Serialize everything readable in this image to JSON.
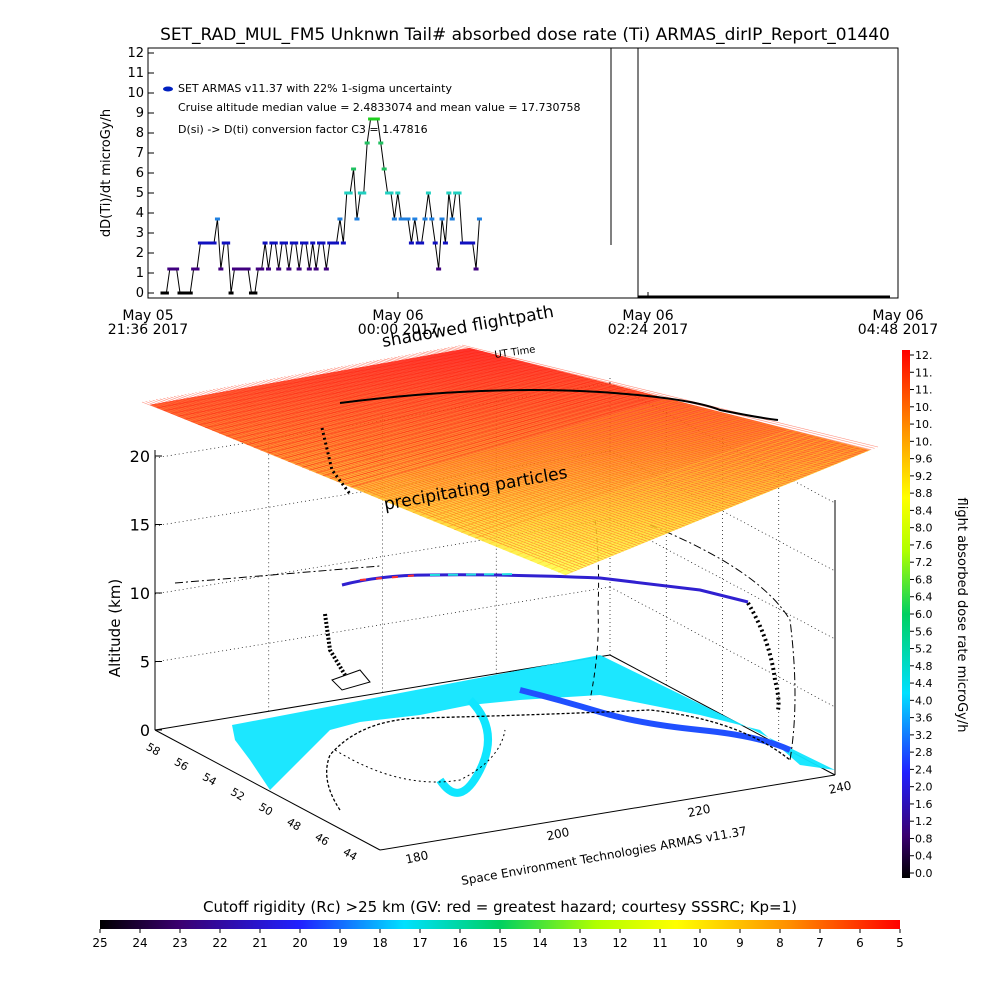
{
  "title": "SET_RAD_MUL_FM5 Unknwn Tail#  absorbed dose rate (Ti) ARMAS_dirIP_Report_01440",
  "chart_data": [
    {
      "type": "line",
      "ylabel": "dD(Ti)/dt microGy/h",
      "ylim": [
        0,
        12
      ],
      "y_ticks": [
        "0",
        "1",
        "2",
        "3",
        "4",
        "5",
        "6",
        "7",
        "8",
        "9",
        "10",
        "11",
        "12"
      ],
      "x_ticks": [
        {
          "date": "May 05",
          "time": "21:36 2017"
        },
        {
          "date": "May 06",
          "time": "00:00 2017"
        },
        {
          "date": "May 06",
          "time": "02:24 2017"
        },
        {
          "date": "May 06",
          "time": "04:48 2017"
        }
      ],
      "legend": "SET ARMAS v11.37 with 22% 1-sigma uncertainty",
      "annotations": [
        "Cruise altitude median value = 2.4833074 and mean value = 17.730758",
        "D(si) -> D(ti) conversion factor C3 = 1.47816"
      ],
      "x_minutes_from_start": [
        0,
        2,
        4,
        6,
        8,
        10,
        12,
        14,
        16,
        18,
        20,
        22,
        24,
        26,
        28,
        30,
        32,
        34,
        36,
        38,
        40,
        42,
        44,
        46,
        48,
        50,
        52,
        54,
        56,
        58,
        60,
        62,
        64,
        66,
        68,
        70,
        72,
        74,
        76,
        78,
        80,
        82,
        84,
        86,
        88,
        90,
        92,
        94,
        96,
        98,
        100,
        102,
        104,
        106,
        108,
        110,
        112,
        114,
        116,
        118,
        120,
        122,
        124,
        126,
        128,
        130,
        132,
        134,
        136,
        138,
        140,
        142,
        144,
        146,
        148,
        150,
        152,
        154,
        156,
        158,
        160,
        162,
        164,
        166,
        168,
        170,
        172,
        174,
        176,
        178,
        180,
        182,
        184,
        186
      ],
      "values": [
        0,
        0,
        1.2,
        1.2,
        1.2,
        0,
        0,
        0,
        0,
        1.2,
        1.2,
        2.5,
        2.5,
        2.5,
        2.5,
        2.5,
        3.7,
        1.2,
        2.5,
        2.5,
        0,
        1.2,
        1.2,
        1.2,
        1.2,
        1.2,
        0,
        0,
        1.2,
        1.2,
        2.5,
        1.2,
        2.5,
        2.5,
        1.2,
        2.5,
        2.5,
        1.2,
        2.5,
        2.5,
        1.2,
        2.5,
        2.5,
        1.2,
        2.5,
        1.2,
        2.5,
        2.5,
        1.2,
        2.5,
        2.5,
        2.5,
        3.7,
        2.5,
        5,
        5,
        6.2,
        3.7,
        5,
        5,
        7.5,
        8.7,
        8.7,
        8.7,
        7.5,
        6.2,
        5,
        5,
        3.7,
        5,
        3.7,
        3.7,
        3.7,
        2.5,
        3.7,
        2.5,
        2.5,
        3.7,
        5,
        3.7,
        2.5,
        1.2,
        3.7,
        2.5,
        5,
        3.7,
        5,
        5,
        2.5,
        2.5,
        2.5,
        2.5,
        1.2,
        3.7
      ],
      "later_values_note": "",
      "colorbar": {
        "label": "flight absorbed dose rate microGy/h",
        "ticks": [
          "12.",
          "11.",
          "11.",
          "10.",
          "10.",
          "10.",
          "9.6",
          "9.2",
          "8.8",
          "8.4",
          "8.0",
          "7.6",
          "7.2",
          "6.8",
          "6.4",
          "6.0",
          "5.6",
          "5.2",
          "4.8",
          "4.4",
          "4.0",
          "3.6",
          "3.2",
          "2.8",
          "2.4",
          "2.0",
          "1.6",
          "1.2",
          "0.8",
          "0.4",
          "0.0"
        ]
      }
    },
    {
      "type": "scatter",
      "xlabel": "Space Environment Technologies ARMAS v11.37",
      "ylabel": "Altitude (km)",
      "z_ticks": [
        "0",
        "5",
        "10",
        "15",
        "20"
      ],
      "lon_ticks": [
        "180",
        "200",
        "220",
        "240"
      ],
      "lat_ticks": [
        "58",
        "56",
        "54",
        "52",
        "50",
        "48",
        "46",
        "44"
      ],
      "labels": [
        "precipitating particles",
        "shadowed flightpath",
        "UT Time"
      ],
      "flightpath_altitude_km": 11
    }
  ],
  "bottom_colorbar": {
    "label": "Cutoff rigidity (Rc) >25 km (GV: red = greatest hazard; courtesy SSSRC; Kp=1)",
    "ticks": [
      "25",
      "24",
      "23",
      "22",
      "21",
      "20",
      "19",
      "18",
      "17",
      "16",
      "15",
      "14",
      "13",
      "12",
      "11",
      "10",
      "9",
      "8",
      "7",
      "6",
      "5"
    ]
  }
}
